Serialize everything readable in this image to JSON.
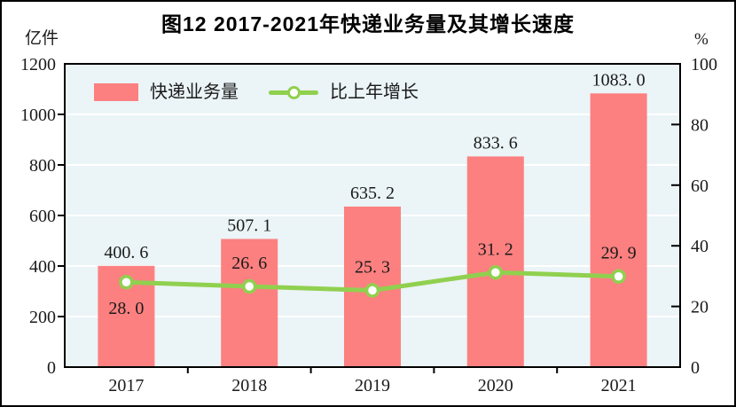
{
  "title": "图12  2017-2021年快递业务量及其增长速度",
  "left_axis_unit": "亿件",
  "right_axis_unit": "%",
  "legend": {
    "bar_label": "快递业务量",
    "line_label": "比上年增长"
  },
  "colors": {
    "bar": "#FC8080",
    "line": "#90D04F",
    "marker_fill": "#FFFFFF",
    "plot_bg": "#EBF4F7",
    "gridline": "#FFFFFF",
    "axis": "#000000",
    "text": "#1a1a1a"
  },
  "chart_data": {
    "type": "bar",
    "subtype": "bar+line-combo",
    "title": "图12  2017-2021年快递业务量及其增长速度",
    "categories": [
      "2017",
      "2018",
      "2019",
      "2020",
      "2021"
    ],
    "series": [
      {
        "name": "快递业务量",
        "type": "bar",
        "axis": "left",
        "unit": "亿件",
        "values": [
          400.6,
          507.1,
          635.2,
          833.6,
          1083.0
        ],
        "value_labels": [
          "400. 6",
          "507. 1",
          "635. 2",
          "833. 6",
          "1083. 0"
        ]
      },
      {
        "name": "比上年增长",
        "type": "line",
        "axis": "right",
        "unit": "%",
        "values": [
          28.0,
          26.6,
          25.3,
          31.2,
          29.9
        ],
        "value_labels": [
          "28. 0",
          "26. 6",
          "25. 3",
          "31. 2",
          "29. 9"
        ],
        "label_positions": [
          "below",
          "above",
          "above",
          "above",
          "above"
        ]
      }
    ],
    "left_axis": {
      "min": 0,
      "max": 1200,
      "step": 200,
      "tick_labels": [
        "0",
        "200",
        "400",
        "600",
        "800",
        "1000",
        "1200"
      ]
    },
    "right_axis": {
      "min": 0,
      "max": 100,
      "step": 20,
      "tick_labels": [
        "0",
        "20",
        "40",
        "60",
        "80",
        "100"
      ]
    },
    "grid": "horizontal-white-on-light-blue",
    "legend_position": "top-left-inside-plot"
  }
}
